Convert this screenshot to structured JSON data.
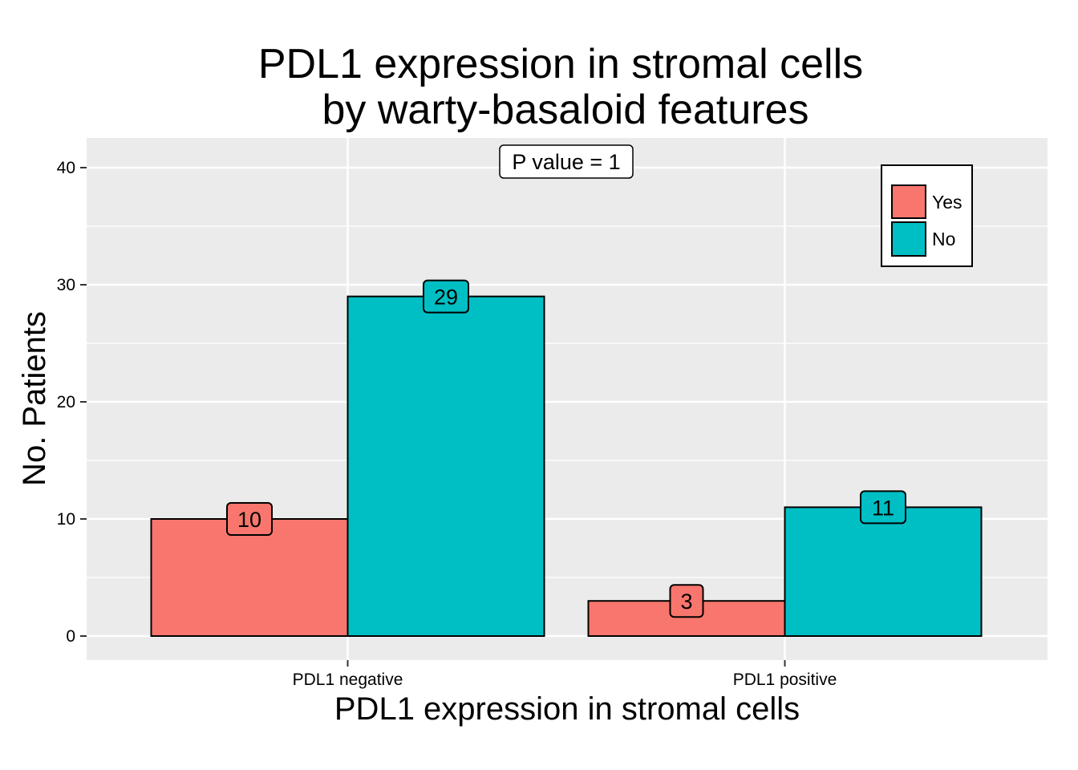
{
  "chart_data": {
    "type": "bar",
    "title_lines": [
      "PDL1 expression in stromal cells",
      "by warty-basaloid features"
    ],
    "xlabel": "PDL1 expression in stromal cells",
    "ylabel": "No. Patients",
    "categories": [
      "PDL1 negative",
      "PDL1 positive"
    ],
    "series": [
      {
        "name": "Yes",
        "color": "#F8766D",
        "values": [
          10,
          3
        ]
      },
      {
        "name": "No",
        "color": "#00BFC4",
        "values": [
          29,
          11
        ]
      }
    ],
    "ylim": [
      -2,
      42.5
    ],
    "yticks": [
      0,
      10,
      20,
      30,
      40
    ],
    "grid": true,
    "panel_background": "#EBEBEB",
    "legend": {
      "placement": "top-right",
      "entries": [
        "Yes",
        "No"
      ]
    },
    "annotation": "P value = 1"
  }
}
